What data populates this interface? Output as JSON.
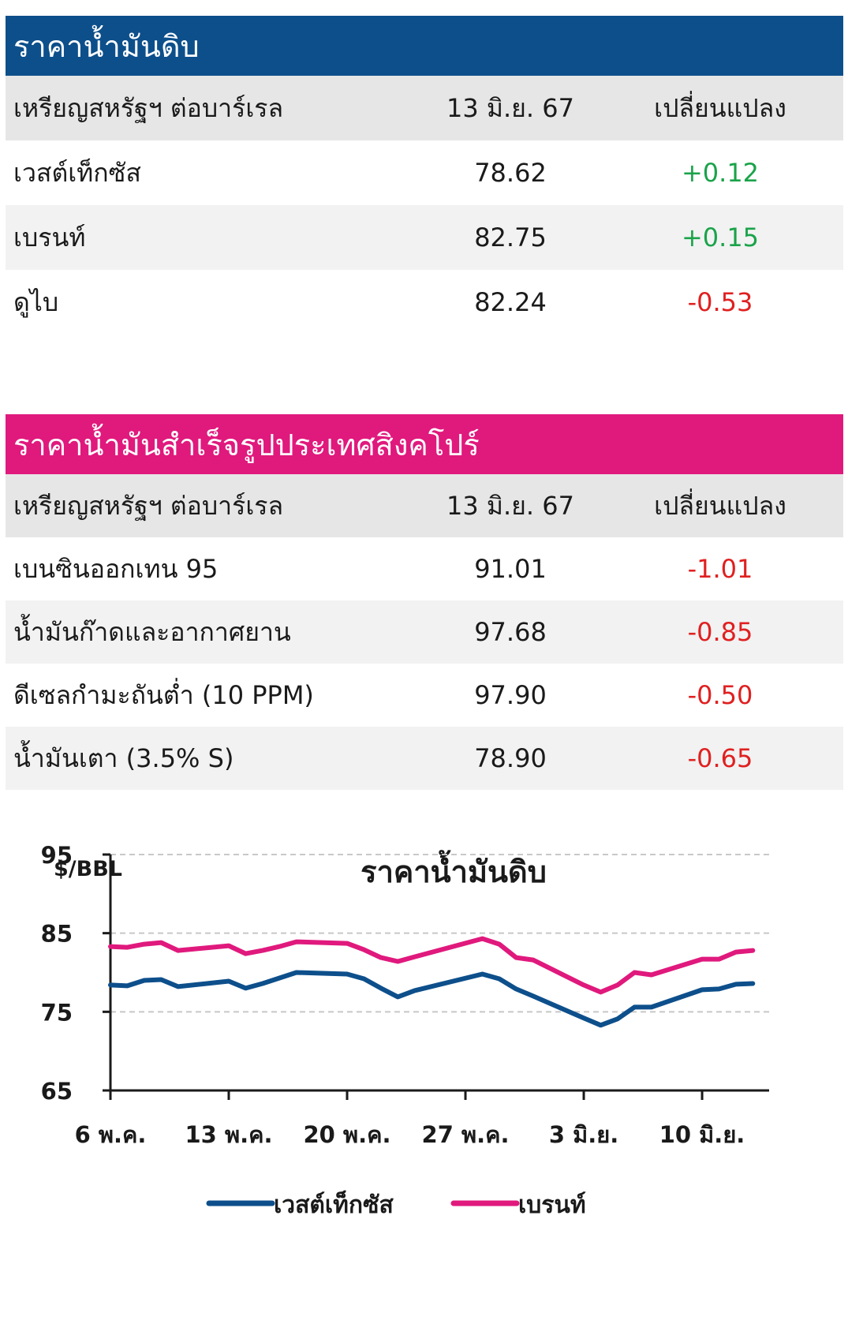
{
  "crude_table": {
    "title": "ราคาน้ำมันดิบ",
    "header": {
      "name": "เหรียญสหรัฐฯ ต่อบาร์เรล",
      "date": "13 มิ.ย. 67",
      "change": "เปลี่ยนแปลง"
    },
    "rows": [
      {
        "name": "เวสต์เท็กซัส",
        "value": "78.62",
        "change": "+0.12"
      },
      {
        "name": "เบรนท์",
        "value": "82.75",
        "change": "+0.15"
      },
      {
        "name": "ดูไบ",
        "value": "82.24",
        "change": "-0.53"
      }
    ]
  },
  "products_table": {
    "title": "ราคาน้ำมันสำเร็จรูปประเทศสิงคโปร์",
    "header": {
      "name": "เหรียญสหรัฐฯ ต่อบาร์เรล",
      "date": "13 มิ.ย. 67",
      "change": "เปลี่ยนแปลง"
    },
    "rows": [
      {
        "name": "เบนซินออกเทน 95",
        "value": "91.01",
        "change": "-1.01"
      },
      {
        "name": "น้ำมันก๊าดและอากาศยาน",
        "value": "97.68",
        "change": "-0.85"
      },
      {
        "name": "ดีเซลกำมะถันต่ำ (10 PPM)",
        "value": "97.90",
        "change": "-0.50"
      },
      {
        "name": "น้ำมันเตา (3.5% S)",
        "value": "78.90",
        "change": "-0.65"
      }
    ]
  },
  "colors": {
    "positive": "#1aa34a",
    "negative": "#e02020",
    "wti": "#0d4f8b",
    "brent": "#e0197d"
  },
  "chart_data": {
    "type": "line",
    "title": "ราคาน้ำมันดิบ",
    "ylabel": "$/BBL",
    "ylim": [
      65,
      95
    ],
    "yticks": [
      65,
      75,
      85,
      95
    ],
    "grid": true,
    "legend_position": "bottom",
    "x_tick_labels": [
      "6 พ.ค.",
      "13 พ.ค.",
      "20 พ.ค.",
      "27 พ.ค.",
      "3 มิ.ย.",
      "10 มิ.ย."
    ],
    "x": [
      "2024-05-06",
      "2024-05-07",
      "2024-05-08",
      "2024-05-09",
      "2024-05-10",
      "2024-05-13",
      "2024-05-14",
      "2024-05-15",
      "2024-05-16",
      "2024-05-17",
      "2024-05-20",
      "2024-05-21",
      "2024-05-22",
      "2024-05-23",
      "2024-05-24",
      "2024-05-28",
      "2024-05-29",
      "2024-05-30",
      "2024-05-31",
      "2024-06-03",
      "2024-06-04",
      "2024-06-05",
      "2024-06-06",
      "2024-06-07",
      "2024-06-10",
      "2024-06-11",
      "2024-06-12",
      "2024-06-13"
    ],
    "series": [
      {
        "name": "เวสต์เท็กซัส",
        "values": [
          78.4,
          78.3,
          79.0,
          79.1,
          78.2,
          78.9,
          78.0,
          78.6,
          79.3,
          80.0,
          79.8,
          79.2,
          78.0,
          76.9,
          77.7,
          79.8,
          79.2,
          77.9,
          77.0,
          74.2,
          73.3,
          74.1,
          75.6,
          75.6,
          77.8,
          77.9,
          78.5,
          78.6
        ]
      },
      {
        "name": "เบรนท์",
        "values": [
          83.3,
          83.2,
          83.6,
          83.8,
          82.8,
          83.4,
          82.4,
          82.8,
          83.3,
          83.9,
          83.7,
          82.9,
          81.9,
          81.4,
          82.0,
          84.3,
          83.6,
          81.9,
          81.6,
          78.4,
          77.5,
          78.4,
          80.0,
          79.7,
          81.7,
          81.7,
          82.6,
          82.8
        ]
      }
    ]
  }
}
